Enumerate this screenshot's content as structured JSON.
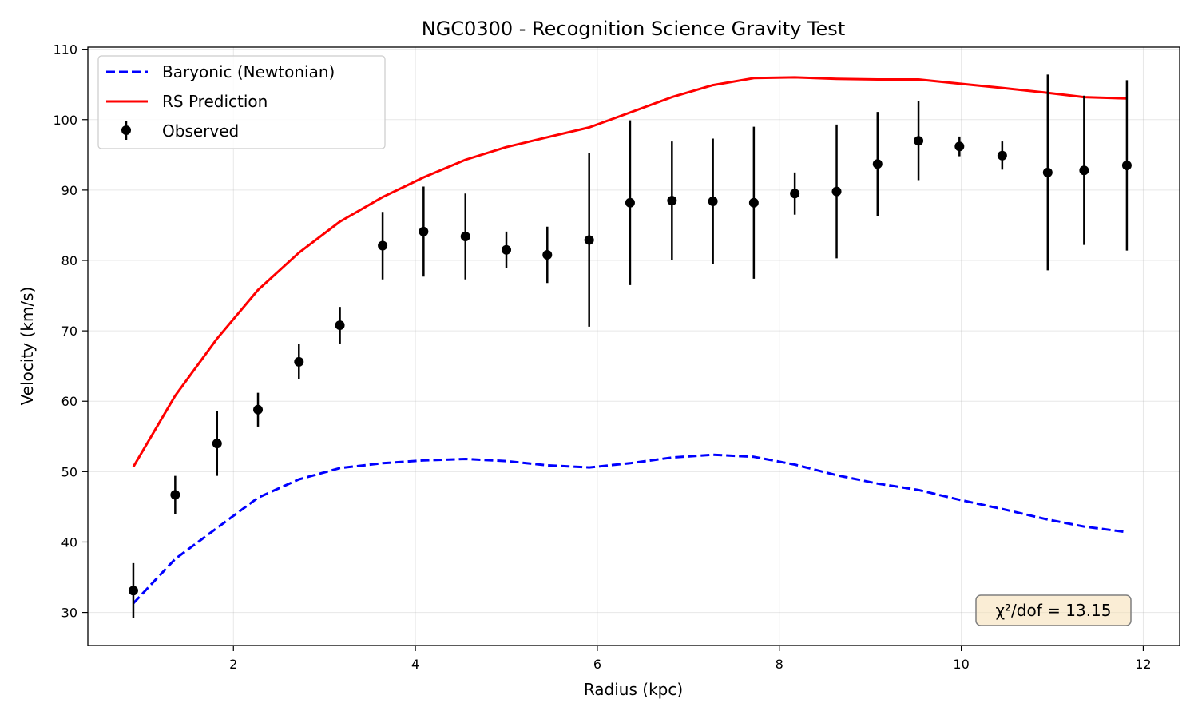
{
  "chart_data": {
    "type": "line",
    "title": "NGC0300 - Recognition Science Gravity Test",
    "xlabel": "Radius (kpc)",
    "ylabel": "Velocity (km/s)",
    "xlim": [
      0.4,
      12.4
    ],
    "ylim": [
      25.3,
      110.3
    ],
    "xticks": [
      2,
      4,
      6,
      8,
      10,
      12
    ],
    "yticks": [
      30,
      40,
      50,
      60,
      70,
      80,
      90,
      100,
      110
    ],
    "grid": true,
    "legend_position": "top-left",
    "annotation": "χ²/dof = 13.15",
    "series": [
      {
        "name": "Baryonic (Newtonian)",
        "style": "dashed",
        "color": "#0000ff",
        "x": [
          0.9,
          1.36,
          1.82,
          2.27,
          2.72,
          3.17,
          3.64,
          4.09,
          4.55,
          5.0,
          5.45,
          5.91,
          6.36,
          6.82,
          7.27,
          7.72,
          8.17,
          8.63,
          9.08,
          9.53,
          9.98,
          10.45,
          10.95,
          11.35,
          11.82
        ],
        "y": [
          31.3,
          37.6,
          42.0,
          46.3,
          48.9,
          50.5,
          51.2,
          51.6,
          51.8,
          51.5,
          50.9,
          50.6,
          51.2,
          52.0,
          52.4,
          52.1,
          51.0,
          49.5,
          48.3,
          47.4,
          46.0,
          44.7,
          43.2,
          42.2,
          41.4
        ]
      },
      {
        "name": "RS Prediction",
        "style": "solid",
        "color": "#ff0000",
        "x": [
          0.9,
          1.36,
          1.82,
          2.27,
          2.72,
          3.17,
          3.64,
          4.09,
          4.55,
          5.0,
          5.45,
          5.91,
          6.36,
          6.82,
          7.27,
          7.72,
          8.17,
          8.63,
          9.08,
          9.53,
          9.98,
          10.45,
          10.95,
          11.35,
          11.82
        ],
        "y": [
          50.7,
          60.8,
          68.9,
          75.8,
          81.1,
          85.5,
          89.0,
          91.8,
          94.3,
          96.1,
          97.5,
          98.9,
          101.0,
          103.2,
          104.9,
          105.9,
          106.0,
          105.8,
          105.7,
          105.7,
          105.1,
          104.5,
          103.8,
          103.2,
          103.0
        ]
      },
      {
        "name": "Observed",
        "style": "errorbar",
        "color": "#000000",
        "x": [
          0.9,
          1.36,
          1.82,
          2.27,
          2.72,
          3.17,
          3.64,
          4.09,
          4.55,
          5.0,
          5.45,
          5.91,
          6.36,
          6.82,
          7.27,
          7.72,
          8.17,
          8.63,
          9.08,
          9.53,
          9.98,
          10.45,
          10.95,
          11.35,
          11.82
        ],
        "y": [
          33.1,
          46.7,
          54.0,
          58.8,
          65.6,
          70.8,
          82.1,
          84.1,
          83.4,
          81.5,
          80.8,
          82.9,
          88.2,
          88.5,
          88.4,
          88.2,
          89.5,
          89.8,
          93.7,
          97.0,
          96.2,
          94.9,
          92.5,
          92.8,
          93.5
        ],
        "err": [
          3.9,
          2.7,
          4.6,
          2.4,
          2.5,
          2.6,
          4.8,
          6.4,
          6.1,
          2.6,
          4.0,
          12.3,
          11.7,
          8.4,
          8.9,
          10.8,
          3.0,
          9.5,
          7.4,
          5.6,
          1.4,
          2.0,
          13.9,
          10.6,
          12.1
        ]
      }
    ]
  }
}
